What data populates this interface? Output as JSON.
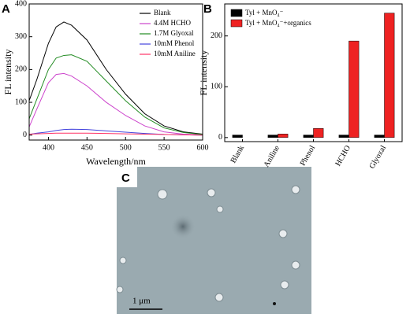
{
  "chart_data": [
    {
      "type": "line",
      "panel_label": "A",
      "xlabel": "Wavelength/nm",
      "ylabel": "FL intensity",
      "x": [
        375,
        385,
        400,
        410,
        420,
        430,
        450,
        475,
        500,
        525,
        550,
        575,
        600
      ],
      "series": [
        {
          "name": "Blank",
          "color": "#000000",
          "values": [
            105,
            170,
            280,
            330,
            345,
            335,
            290,
            200,
            125,
            65,
            28,
            10,
            3
          ]
        },
        {
          "name": "4.4M HCHO",
          "color": "#cc44cc",
          "values": [
            25,
            80,
            160,
            185,
            188,
            180,
            150,
            100,
            60,
            28,
            10,
            3,
            1
          ]
        },
        {
          "name": "1.7M Glyoxal",
          "color": "#228b22",
          "values": [
            50,
            110,
            200,
            235,
            243,
            245,
            225,
            165,
            105,
            55,
            22,
            8,
            2
          ]
        },
        {
          "name": "10mM Phenol",
          "color": "#4444dd",
          "values": [
            2,
            6,
            10,
            14,
            17,
            18,
            17,
            13,
            9,
            5,
            2,
            1,
            0
          ]
        },
        {
          "name": "10mM Aniline",
          "color": "#ff3366",
          "values": [
            3,
            4,
            5,
            6,
            6,
            6,
            6,
            5,
            4,
            3,
            2,
            1,
            0
          ]
        }
      ],
      "xlim": [
        375,
        600
      ],
      "xticks": [
        400,
        450,
        500,
        550,
        600
      ],
      "ylim": [
        -15,
        400
      ],
      "yticks": [
        0,
        100,
        200,
        300,
        400
      ],
      "legend": "upper right"
    },
    {
      "type": "bar",
      "panel_label": "B",
      "ylabel": "FL intensity",
      "categories": [
        "Blank",
        "Aniline",
        "Phenol",
        "HCHO",
        "Glyoxal"
      ],
      "series": [
        {
          "name": "Tyl + MnO₄⁻",
          "color": "#000000",
          "values": [
            5,
            5,
            5,
            5,
            5
          ]
        },
        {
          "name": "Tyl + MnO₄⁻+organics",
          "color": "#ee2222",
          "values": [
            null,
            7,
            18,
            190,
            245
          ]
        }
      ],
      "ylim": [
        -8,
        263
      ],
      "yticks": [
        0,
        100,
        200
      ],
      "legend": "upper left"
    }
  ],
  "image": {
    "panel_label": "C",
    "scale_bar": "1 μm"
  }
}
